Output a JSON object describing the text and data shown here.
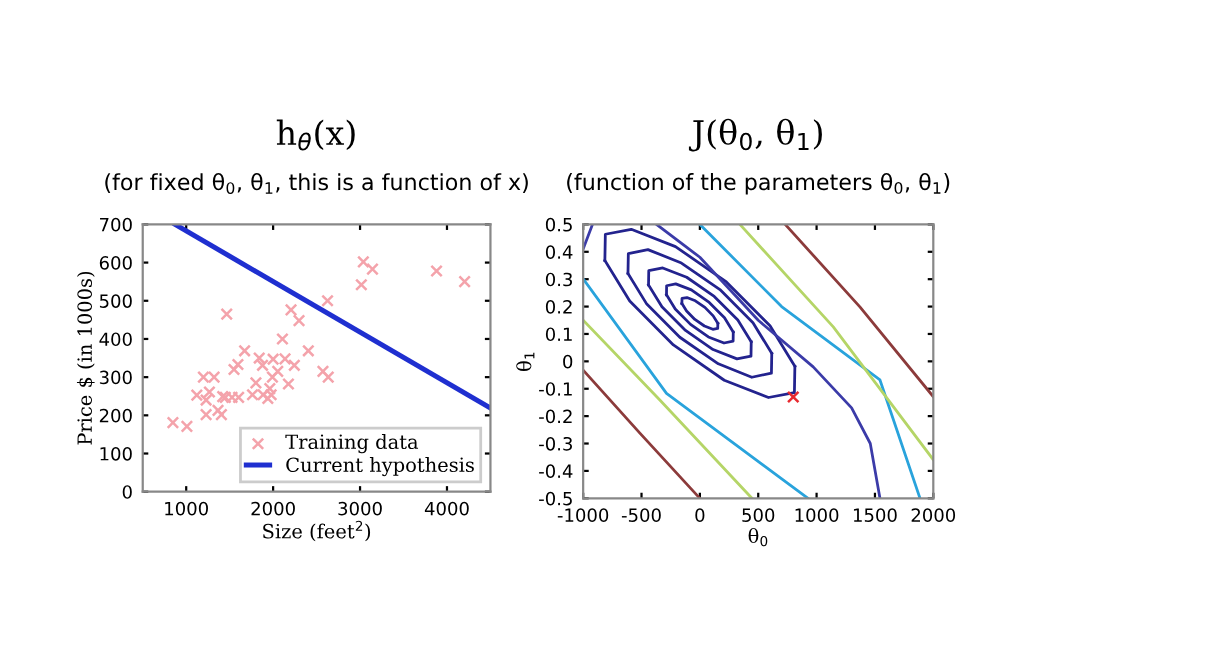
{
  "chart_data": [
    {
      "type": "scatter",
      "title": "h$_{θ}$(x)",
      "subtitle": "(for fixed θ$_{0}$, θ$_{1}$, this is a function of x)",
      "xlabel": "Size (feet$^{2}$)",
      "ylabel": "Price $ (in 1000s)",
      "xlim": [
        500,
        4500
      ],
      "xticks": [
        1000,
        2000,
        3000,
        4000
      ],
      "ylim": [
        0,
        700
      ],
      "yticks": [
        0,
        100,
        200,
        300,
        400,
        500,
        600,
        700
      ],
      "grid": false,
      "legend": "bottom right",
      "series": [
        {
          "name": "Training data",
          "marker": "cross",
          "color": "#f4a3ab",
          "x": [
            847,
            1008,
            1122,
            1198,
            1229,
            1229,
            1267,
            1321,
            1366,
            1405,
            1420,
            1450,
            1466,
            1527,
            1550,
            1595,
            1603,
            1672,
            1763,
            1802,
            1840,
            1878,
            1885,
            1939,
            1962,
            1977,
            1992,
            2000,
            2053,
            2107,
            2137,
            2176,
            2206,
            2244,
            2298,
            2405,
            2573,
            2626,
            2634,
            3038,
            3143,
            3015,
            3880,
            4203
          ],
          "values": [
            181,
            171,
            253,
            300,
            240,
            202,
            261,
            300,
            213,
            202,
            249,
            247,
            465,
            247,
            320,
            333,
            247,
            369,
            254,
            285,
            350,
            331,
            254,
            244,
            270,
            254,
            300,
            347,
            315,
            400,
            348,
            282,
            476,
            331,
            448,
            369,
            315,
            500,
            300,
            602,
            583,
            542,
            578,
            550
          ]
        },
        {
          "name": "Current hypothesis",
          "type": "line",
          "color": "#1f2fd0",
          "x": [
            872,
            4500
          ],
          "values": [
            700,
            219
          ]
        }
      ]
    },
    {
      "type": "line",
      "title": "J(θ$_{0}$, θ$_{1}$)",
      "subtitle": "(function of the parameters θ$_{0}$, θ$_{1}$)",
      "xlabel": "θ$_{0}$",
      "ylabel": "θ$_{1}$",
      "xlim": [
        -1000,
        2000
      ],
      "xticks": [
        -1000,
        -500,
        0,
        500,
        1000,
        1500,
        2000
      ],
      "ylim": [
        -0.5,
        0.5
      ],
      "yticks": [
        -0.5,
        -0.4,
        -0.3,
        -0.2,
        -0.1,
        0,
        0.1,
        0.2,
        0.3,
        0.4,
        0.5
      ],
      "grid": false,
      "series": [
        {
          "color": "#23238e",
          "x": [
            -154,
            -153,
            -111,
            -39,
            43,
            114,
            154
          ],
          "values": [
            0.211,
            0.23,
            0.233,
            0.221,
            0.197,
            0.166,
            0.139
          ]
        },
        {
          "color": "#23238e",
          "x": [
            -154,
            -114,
            -43,
            39,
            111,
            153,
            154
          ],
          "values": [
            0.211,
            0.184,
            0.153,
            0.129,
            0.117,
            0.12,
            0.139
          ]
        },
        {
          "color": "#23238e",
          "x": [
            -286,
            -285,
            -207,
            -73,
            80,
            211,
            286
          ],
          "values": [
            0.243,
            0.276,
            0.283,
            0.261,
            0.215,
            0.159,
            0.107
          ]
        },
        {
          "color": "#23238e",
          "x": [
            -286,
            -211,
            -80,
            73,
            207,
            285,
            286
          ],
          "values": [
            0.243,
            0.191,
            0.135,
            0.089,
            0.067,
            0.074,
            0.107
          ]
        },
        {
          "color": "#23238e",
          "x": [
            -440,
            -438,
            -318,
            -113,
            123,
            325,
            440
          ],
          "values": [
            0.279,
            0.331,
            0.341,
            0.307,
            0.237,
            0.151,
            0.071
          ]
        },
        {
          "color": "#23238e",
          "x": [
            -440,
            -325,
            -123,
            113,
            318,
            438,
            440
          ],
          "values": [
            0.279,
            0.199,
            0.113,
            0.043,
            0.009,
            0.019,
            0.071
          ]
        },
        {
          "color": "#23238e",
          "x": [
            -616,
            -613,
            -445,
            -158,
            172,
            455,
            616
          ],
          "values": [
            0.321,
            0.393,
            0.408,
            0.359,
            0.262,
            0.141,
            0.029
          ]
        },
        {
          "color": "#23238e",
          "x": [
            -616,
            -455,
            -172,
            158,
            445,
            613,
            616
          ],
          "values": [
            0.321,
            0.209,
            0.088,
            -0.009,
            -0.058,
            -0.043,
            0.029
          ]
        },
        {
          "color": "#23238e",
          "x": [
            -814,
            -810,
            -588,
            -209,
            227,
            601,
            814
          ],
          "values": [
            0.368,
            0.464,
            0.482,
            0.419,
            0.29,
            0.13,
            -0.018
          ]
        },
        {
          "color": "#23238e",
          "x": [
            -814,
            -601,
            -227,
            209,
            588,
            810,
            814
          ],
          "values": [
            0.368,
            0.22,
            0.06,
            -0.069,
            -0.132,
            -0.114,
            -0.018
          ]
        },
        {
          "color": "#3b3ba8",
          "x": [
            -371,
            0,
            500,
            971,
            1300,
            1460,
            1543
          ],
          "values": [
            0.5,
            0.38,
            0.15,
            -0.02,
            -0.17,
            -0.3,
            -0.5
          ]
        },
        {
          "color": "#3b3ba8",
          "x": [
            -1000,
            -920
          ],
          "values": [
            0.41,
            0.5
          ]
        },
        {
          "color": "#29a3dc",
          "x": [
            0,
            700,
            1543,
            1886
          ],
          "values": [
            0.5,
            0.2,
            -0.068,
            -0.5
          ]
        },
        {
          "color": "#29a3dc",
          "x": [
            -1000,
            -286,
            926
          ],
          "values": [
            0.301,
            -0.117,
            -0.5
          ]
        },
        {
          "color": "#b5d567",
          "x": [
            343,
            1143,
            2000
          ],
          "values": [
            0.5,
            0.126,
            -0.359
          ]
        },
        {
          "color": "#b5d567",
          "x": [
            -1000,
            -343,
            446
          ],
          "values": [
            0.15,
            -0.141,
            -0.5
          ]
        },
        {
          "color": "#8c3b3b",
          "x": [
            731,
            1371,
            2000
          ],
          "values": [
            0.5,
            0.199,
            -0.129
          ]
        },
        {
          "color": "#8c3b3b",
          "x": [
            -1000,
            -514,
            0
          ],
          "values": [
            -0.032,
            -0.262,
            -0.5
          ]
        },
        {
          "type": "scatter",
          "marker": "cross",
          "color": "#e8292f",
          "x": [
            800
          ],
          "values": [
            -0.13
          ]
        }
      ]
    }
  ]
}
